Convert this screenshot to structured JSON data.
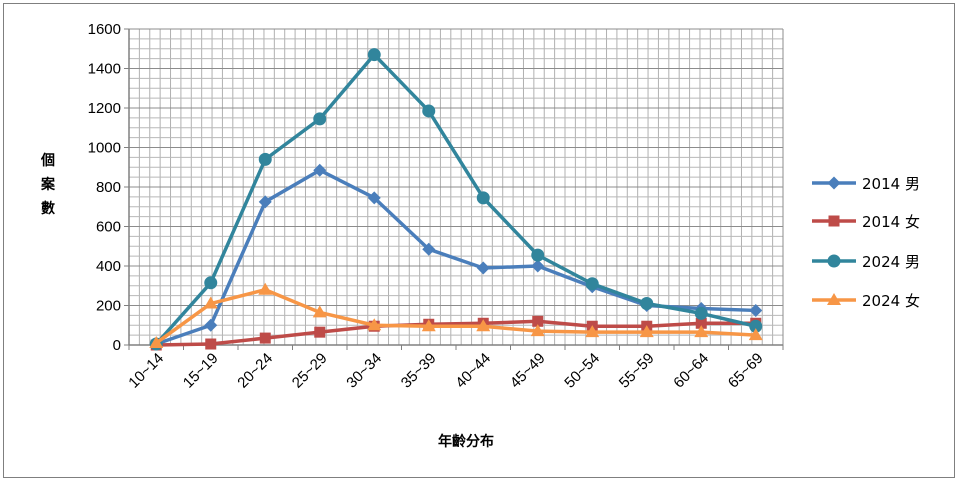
{
  "chart_data": {
    "type": "line",
    "title": "",
    "xlabel": "年齡分布",
    "ylabel": "個案數",
    "categories": [
      "10~14",
      "15~19",
      "20~24",
      "25~29",
      "30~34",
      "35~39",
      "40~44",
      "45~49",
      "50~54",
      "55~59",
      "60~64",
      "65~69"
    ],
    "ylim": [
      0,
      1600
    ],
    "yticks": [
      0,
      200,
      400,
      600,
      800,
      1000,
      1200,
      1400,
      1600
    ],
    "grid": true,
    "legend_position": "right",
    "series": [
      {
        "name": "2014 男",
        "color": "#4a7ebb",
        "marker": "diamond",
        "values": [
          5,
          100,
          725,
          885,
          745,
          485,
          390,
          400,
          295,
          200,
          185,
          175
        ]
      },
      {
        "name": "2014 女",
        "color": "#be4b48",
        "marker": "square",
        "values": [
          0,
          5,
          35,
          65,
          95,
          105,
          110,
          120,
          95,
          95,
          110,
          110
        ]
      },
      {
        "name": "2024 男",
        "color": "#31859c",
        "marker": "circle",
        "values": [
          5,
          315,
          940,
          1145,
          1470,
          1185,
          745,
          455,
          310,
          210,
          160,
          95
        ]
      },
      {
        "name": "2024 女",
        "color": "#f79646",
        "marker": "triangle",
        "values": [
          10,
          210,
          280,
          165,
          100,
          95,
          95,
          70,
          65,
          65,
          65,
          50
        ]
      }
    ]
  }
}
